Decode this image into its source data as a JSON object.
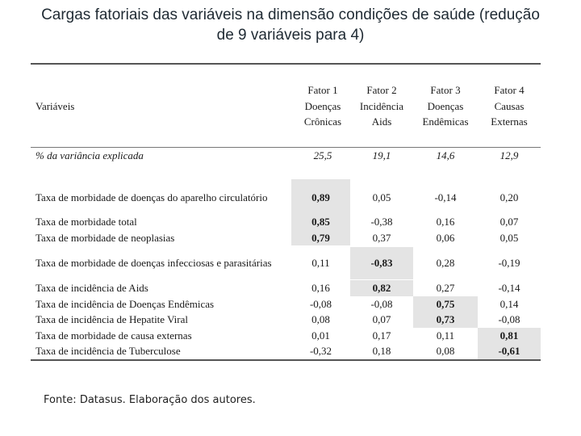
{
  "title_line1": "Cargas fatoriais das variáveis na dimensão condições de saúde (redução",
  "title_line2": "de 9 variáveis para 4)",
  "header": {
    "variables_label": "Variáveis",
    "factors": [
      [
        "Fator 1",
        "Doenças",
        "Crônicas"
      ],
      [
        "Fator 2",
        "Incidência",
        "Aids"
      ],
      [
        "Fator 3",
        "Doenças",
        "Endêmicas"
      ],
      [
        "Fator 4",
        "Causas",
        "Externas"
      ]
    ]
  },
  "variance": {
    "label": "% da variância explicada",
    "values": [
      "25,5",
      "19,1",
      "14,6",
      "12,9"
    ]
  },
  "groups": [
    {
      "labels": [
        "Taxa de morbidade de doenças do aparelho circulatório"
      ],
      "values": [
        [
          "0,89"
        ],
        [
          "0,05"
        ],
        [
          "-0,14"
        ],
        [
          "0,20"
        ]
      ]
    },
    {
      "labels": [
        "Taxa de morbidade total",
        "Taxa de morbidade de neoplasias"
      ],
      "values": [
        [
          "0,85",
          "0,79"
        ],
        [
          "-0,38",
          "0,37"
        ],
        [
          "0,16",
          "0,06"
        ],
        [
          "0,07",
          "0,05"
        ]
      ]
    },
    {
      "labels": [
        "Taxa de morbidade de doenças infecciosas e parasitárias"
      ],
      "values": [
        [
          "0,11"
        ],
        [
          "-0,83"
        ],
        [
          "0,28"
        ],
        [
          "-0,19"
        ]
      ]
    },
    {
      "labels": [
        "Taxa de incidência de Aids",
        "Taxa de incidência de Doenças Endêmicas",
        "Taxa de incidência de Hepatite Viral",
        "Taxa de morbidade de causa externas",
        "Taxa de incidência de Tuberculose"
      ],
      "values": [
        [
          "0,16",
          "-0,08",
          "0,08",
          "0,01",
          "-0,32"
        ],
        [
          "0,82",
          "-0,08",
          "0,07",
          "0,17",
          "0,18"
        ],
        [
          "0,27",
          "0,75",
          "0,73",
          "0,11",
          "0,08"
        ],
        [
          "-0,14",
          "0,14",
          "-0,08",
          "0,81",
          "-0,61"
        ]
      ]
    }
  ],
  "source": "Fonte: Datasus. Elaboração dos autores."
}
